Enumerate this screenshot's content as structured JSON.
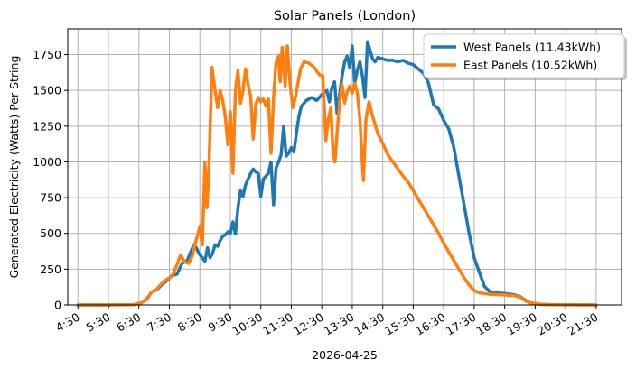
{
  "chart_data": {
    "type": "line",
    "title": "Solar Panels (London)",
    "xlabel": "2026-04-25",
    "ylabel": "Generated Electricity (Watts) Per String",
    "xlim": [
      "04:10",
      "22:20"
    ],
    "ylim": [
      0,
      1930
    ],
    "x_ticks": [
      "4:30",
      "5:30",
      "6:30",
      "7:30",
      "8:30",
      "9:30",
      "10:30",
      "11:30",
      "12:30",
      "13:30",
      "14:30",
      "15:30",
      "16:30",
      "17:30",
      "18:30",
      "19:30",
      "20:30",
      "21:30"
    ],
    "y_ticks": [
      0,
      250,
      500,
      750,
      1000,
      1250,
      1500,
      1750
    ],
    "grid": true,
    "legend_position": "top-right",
    "series": [
      {
        "name": "West Panels (11.43kWh)",
        "color": "#1f77b4",
        "points": [
          [
            "04:30",
            0
          ],
          [
            "05:30",
            0
          ],
          [
            "06:20",
            2
          ],
          [
            "06:35",
            15
          ],
          [
            "06:45",
            40
          ],
          [
            "06:55",
            90
          ],
          [
            "07:05",
            105
          ],
          [
            "07:15",
            140
          ],
          [
            "07:25",
            170
          ],
          [
            "07:35",
            205
          ],
          [
            "07:45",
            215
          ],
          [
            "07:55",
            290
          ],
          [
            "08:05",
            310
          ],
          [
            "08:12",
            370
          ],
          [
            "08:18",
            420
          ],
          [
            "08:23",
            400
          ],
          [
            "08:28",
            360
          ],
          [
            "08:35",
            330
          ],
          [
            "08:40",
            305
          ],
          [
            "08:45",
            400
          ],
          [
            "08:50",
            330
          ],
          [
            "08:55",
            360
          ],
          [
            "09:00",
            420
          ],
          [
            "09:05",
            410
          ],
          [
            "09:10",
            450
          ],
          [
            "09:15",
            480
          ],
          [
            "09:20",
            490
          ],
          [
            "09:25",
            510
          ],
          [
            "09:30",
            500
          ],
          [
            "09:35",
            580
          ],
          [
            "09:40",
            495
          ],
          [
            "09:45",
            680
          ],
          [
            "09:50",
            800
          ],
          [
            "09:55",
            760
          ],
          [
            "10:00",
            840
          ],
          [
            "10:05",
            880
          ],
          [
            "10:10",
            920
          ],
          [
            "10:15",
            950
          ],
          [
            "10:20",
            930
          ],
          [
            "10:25",
            920
          ],
          [
            "10:30",
            760
          ],
          [
            "10:35",
            880
          ],
          [
            "10:40",
            900
          ],
          [
            "10:45",
            920
          ],
          [
            "10:50",
            1000
          ],
          [
            "10:55",
            700
          ],
          [
            "11:00",
            960
          ],
          [
            "11:05",
            1000
          ],
          [
            "11:10",
            1050
          ],
          [
            "11:15",
            1250
          ],
          [
            "11:20",
            1040
          ],
          [
            "11:25",
            1060
          ],
          [
            "11:30",
            1100
          ],
          [
            "11:35",
            1070
          ],
          [
            "11:40",
            1200
          ],
          [
            "11:45",
            1320
          ],
          [
            "11:50",
            1390
          ],
          [
            "11:55",
            1410
          ],
          [
            "12:00",
            1430
          ],
          [
            "12:10",
            1450
          ],
          [
            "12:20",
            1430
          ],
          [
            "12:30",
            1470
          ],
          [
            "12:40",
            1500
          ],
          [
            "12:45",
            1420
          ],
          [
            "12:50",
            1520
          ],
          [
            "12:55",
            1560
          ],
          [
            "13:00",
            1340
          ],
          [
            "13:05",
            1470
          ],
          [
            "13:10",
            1600
          ],
          [
            "13:15",
            1700
          ],
          [
            "13:20",
            1740
          ],
          [
            "13:25",
            1660
          ],
          [
            "13:30",
            1810
          ],
          [
            "13:35",
            1550
          ],
          [
            "13:40",
            1640
          ],
          [
            "13:45",
            1700
          ],
          [
            "13:50",
            1600
          ],
          [
            "13:55",
            1450
          ],
          [
            "14:00",
            1840
          ],
          [
            "14:05",
            1780
          ],
          [
            "14:10",
            1720
          ],
          [
            "14:15",
            1700
          ],
          [
            "14:20",
            1730
          ],
          [
            "14:30",
            1720
          ],
          [
            "14:40",
            1710
          ],
          [
            "14:50",
            1710
          ],
          [
            "15:00",
            1700
          ],
          [
            "15:10",
            1710
          ],
          [
            "15:20",
            1690
          ],
          [
            "15:30",
            1680
          ],
          [
            "15:40",
            1650
          ],
          [
            "15:50",
            1620
          ],
          [
            "16:00",
            1550
          ],
          [
            "16:10",
            1400
          ],
          [
            "16:20",
            1370
          ],
          [
            "16:30",
            1290
          ],
          [
            "16:40",
            1230
          ],
          [
            "16:50",
            1100
          ],
          [
            "17:00",
            900
          ],
          [
            "17:10",
            700
          ],
          [
            "17:20",
            500
          ],
          [
            "17:30",
            330
          ],
          [
            "17:40",
            230
          ],
          [
            "17:50",
            130
          ],
          [
            "18:00",
            95
          ],
          [
            "18:10",
            85
          ],
          [
            "18:30",
            80
          ],
          [
            "18:50",
            70
          ],
          [
            "19:00",
            60
          ],
          [
            "19:10",
            35
          ],
          [
            "19:20",
            15
          ],
          [
            "19:40",
            5
          ],
          [
            "20:00",
            2
          ],
          [
            "21:30",
            0
          ]
        ]
      },
      {
        "name": "East Panels (10.52kWh)",
        "color": "#ff7f0e",
        "points": [
          [
            "04:30",
            0
          ],
          [
            "05:30",
            0
          ],
          [
            "06:20",
            2
          ],
          [
            "06:35",
            15
          ],
          [
            "06:45",
            35
          ],
          [
            "06:55",
            90
          ],
          [
            "07:05",
            110
          ],
          [
            "07:15",
            150
          ],
          [
            "07:25",
            180
          ],
          [
            "07:35",
            200
          ],
          [
            "07:45",
            280
          ],
          [
            "07:52",
            350
          ],
          [
            "08:00",
            300
          ],
          [
            "08:08",
            290
          ],
          [
            "08:15",
            340
          ],
          [
            "08:20",
            420
          ],
          [
            "08:25",
            480
          ],
          [
            "08:30",
            550
          ],
          [
            "08:35",
            420
          ],
          [
            "08:40",
            1000
          ],
          [
            "08:44",
            680
          ],
          [
            "08:48",
            970
          ],
          [
            "08:54",
            1660
          ],
          [
            "09:00",
            1500
          ],
          [
            "09:05",
            1380
          ],
          [
            "09:10",
            1500
          ],
          [
            "09:15",
            1430
          ],
          [
            "09:20",
            1320
          ],
          [
            "09:25",
            1120
          ],
          [
            "09:30",
            1350
          ],
          [
            "09:35",
            920
          ],
          [
            "09:40",
            1500
          ],
          [
            "09:45",
            1640
          ],
          [
            "09:50",
            1410
          ],
          [
            "09:55",
            1500
          ],
          [
            "10:00",
            1650
          ],
          [
            "10:05",
            1540
          ],
          [
            "10:10",
            1460
          ],
          [
            "10:15",
            1160
          ],
          [
            "10:20",
            1400
          ],
          [
            "10:25",
            1450
          ],
          [
            "10:30",
            1420
          ],
          [
            "10:35",
            1440
          ],
          [
            "10:40",
            1390
          ],
          [
            "10:45",
            1440
          ],
          [
            "10:50",
            1060
          ],
          [
            "10:55",
            1450
          ],
          [
            "11:00",
            1700
          ],
          [
            "11:05",
            1740
          ],
          [
            "11:08",
            1560
          ],
          [
            "11:12",
            1800
          ],
          [
            "11:18",
            1530
          ],
          [
            "11:22",
            1810
          ],
          [
            "11:28",
            1530
          ],
          [
            "11:33",
            1380
          ],
          [
            "11:38",
            1450
          ],
          [
            "11:43",
            1550
          ],
          [
            "11:48",
            1650
          ],
          [
            "11:55",
            1700
          ],
          [
            "12:05",
            1690
          ],
          [
            "12:15",
            1660
          ],
          [
            "12:25",
            1610
          ],
          [
            "12:32",
            1600
          ],
          [
            "12:38",
            1150
          ],
          [
            "12:43",
            1300
          ],
          [
            "12:48",
            1380
          ],
          [
            "12:52",
            1070
          ],
          [
            "12:56",
            1000
          ],
          [
            "13:00",
            1200
          ],
          [
            "13:05",
            1420
          ],
          [
            "13:10",
            1540
          ],
          [
            "13:15",
            1410
          ],
          [
            "13:20",
            1490
          ],
          [
            "13:25",
            1530
          ],
          [
            "13:30",
            1480
          ],
          [
            "13:35",
            1550
          ],
          [
            "13:40",
            1480
          ],
          [
            "13:45",
            1300
          ],
          [
            "13:48",
            1100
          ],
          [
            "13:52",
            870
          ],
          [
            "13:57",
            1300
          ],
          [
            "14:03",
            1420
          ],
          [
            "14:10",
            1320
          ],
          [
            "14:20",
            1200
          ],
          [
            "14:30",
            1130
          ],
          [
            "14:40",
            1050
          ],
          [
            "14:50",
            1000
          ],
          [
            "15:00",
            950
          ],
          [
            "15:10",
            900
          ],
          [
            "15:20",
            860
          ],
          [
            "15:30",
            800
          ],
          [
            "15:40",
            740
          ],
          [
            "15:50",
            680
          ],
          [
            "16:00",
            620
          ],
          [
            "16:10",
            560
          ],
          [
            "16:20",
            500
          ],
          [
            "16:30",
            430
          ],
          [
            "16:40",
            370
          ],
          [
            "16:50",
            310
          ],
          [
            "17:00",
            250
          ],
          [
            "17:10",
            190
          ],
          [
            "17:20",
            140
          ],
          [
            "17:30",
            100
          ],
          [
            "17:40",
            85
          ],
          [
            "17:50",
            80
          ],
          [
            "18:00",
            75
          ],
          [
            "18:30",
            70
          ],
          [
            "18:50",
            65
          ],
          [
            "19:00",
            55
          ],
          [
            "19:10",
            30
          ],
          [
            "19:20",
            15
          ],
          [
            "19:40",
            5
          ],
          [
            "20:00",
            2
          ],
          [
            "21:30",
            0
          ]
        ]
      }
    ]
  }
}
